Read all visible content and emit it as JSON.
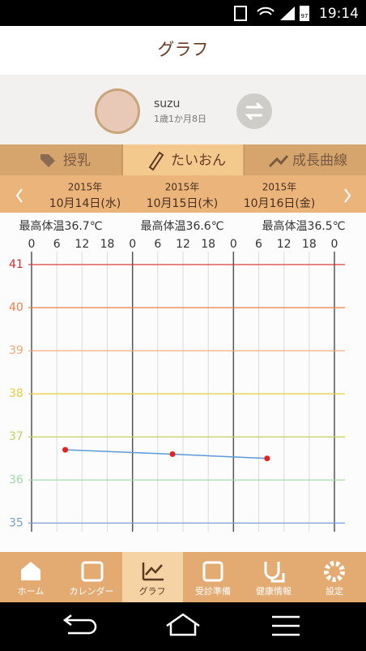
{
  "status_bar": {
    "time": "19:14",
    "battery": "97"
  },
  "header": {
    "title": "グラフ"
  },
  "profile": {
    "name": "suzu",
    "age": "1歳1か月8日"
  },
  "tabs": [
    "授乳",
    "たいおん",
    "成長曲線"
  ],
  "dates": [
    {
      "year": "2015年",
      "date": "10月14日(水)"
    },
    {
      "year": "2015年",
      "date": "10月15日(木)"
    },
    {
      "year": "2015年",
      "date": "10月16日(金)"
    }
  ],
  "chart_data": {
    "type": "line",
    "annotations": [
      "最高体温36.7℃",
      "最高体温36.6℃",
      "最高体温36.5℃"
    ],
    "x": [
      8,
      33.5,
      56
    ],
    "series": [
      {
        "values": [
          36.7,
          36.6,
          36.5
        ],
        "color": "#5b9bd5",
        "marker_color": "#e52222"
      }
    ],
    "xlim": [
      0,
      72
    ],
    "xticks": [
      0,
      6,
      12,
      18,
      {
        "value": 24,
        "label": "0"
      },
      {
        "value": 30,
        "label": "6"
      },
      {
        "value": 36,
        "label": "12"
      },
      {
        "value": 42,
        "label": "18"
      },
      {
        "value": 48,
        "label": "0"
      },
      {
        "value": 54,
        "label": "6"
      },
      {
        "value": 60,
        "label": "12"
      },
      {
        "value": 66,
        "label": "18"
      },
      {
        "value": 72,
        "label": "0"
      }
    ],
    "ylim": [
      34.8,
      41.3
    ],
    "yticks": [
      35,
      36,
      37,
      38,
      39,
      40,
      41
    ],
    "ytick_colors": [
      "#7b9fd4",
      "#9fd8a8",
      "#c2d25a",
      "#e8cf3a",
      "#f2a672",
      "#ef7e45",
      "#d82a2a"
    ],
    "grid": true
  },
  "bottom_nav": [
    "ホーム",
    "カレンダー",
    "グラフ",
    "受診準備",
    "健康情報",
    "設定"
  ]
}
